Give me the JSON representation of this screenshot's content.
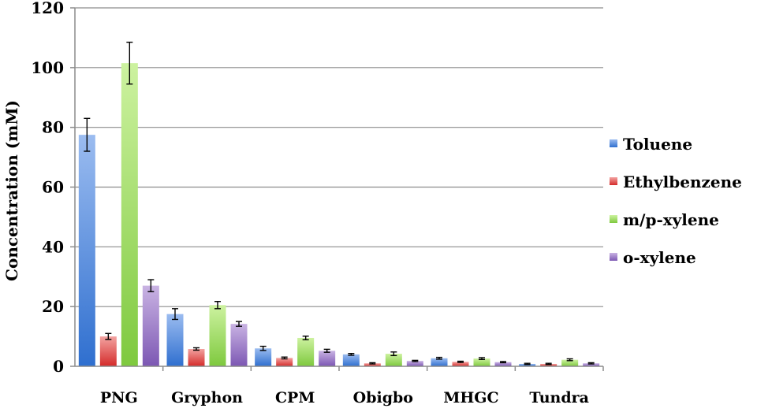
{
  "chart_data": {
    "type": "bar",
    "title": "",
    "xlabel": "",
    "ylabel": "Concentration (mM)",
    "ylim": [
      0,
      120
    ],
    "yticks": [
      0,
      20,
      40,
      60,
      80,
      100,
      120
    ],
    "grid": true,
    "legend_position": "right",
    "categories": [
      "PNG",
      "Gryphon",
      "CPM",
      "Obigbo",
      "MHGC",
      "Tundra"
    ],
    "series": [
      {
        "name": "Toluene",
        "color_top": "#9bbcf0",
        "color_bottom": "#2f6fcf",
        "values": [
          77.5,
          17.5,
          6.0,
          4.0,
          2.7,
          0.8
        ],
        "errors": [
          5.5,
          1.8,
          0.7,
          0.3,
          0.3,
          0.2
        ]
      },
      {
        "name": "Ethylbenzene",
        "color_top": "#f3a3a1",
        "color_bottom": "#d42b2a",
        "values": [
          10.0,
          5.8,
          2.8,
          1.0,
          1.5,
          0.8
        ],
        "errors": [
          1.0,
          0.4,
          0.3,
          0.2,
          0.2,
          0.2
        ]
      },
      {
        "name": "m/p-xylene",
        "color_top": "#cdf2a0",
        "color_bottom": "#7ec93e",
        "values": [
          101.5,
          20.5,
          9.5,
          4.2,
          2.6,
          2.2
        ],
        "errors": [
          7.0,
          1.2,
          0.6,
          0.6,
          0.3,
          0.3
        ]
      },
      {
        "name": "o-xylene",
        "color_top": "#c9b3e3",
        "color_bottom": "#7c57b3",
        "values": [
          27.0,
          14.2,
          5.2,
          1.8,
          1.4,
          1.0
        ],
        "errors": [
          2.0,
          0.8,
          0.5,
          0.2,
          0.2,
          0.2
        ]
      }
    ]
  }
}
